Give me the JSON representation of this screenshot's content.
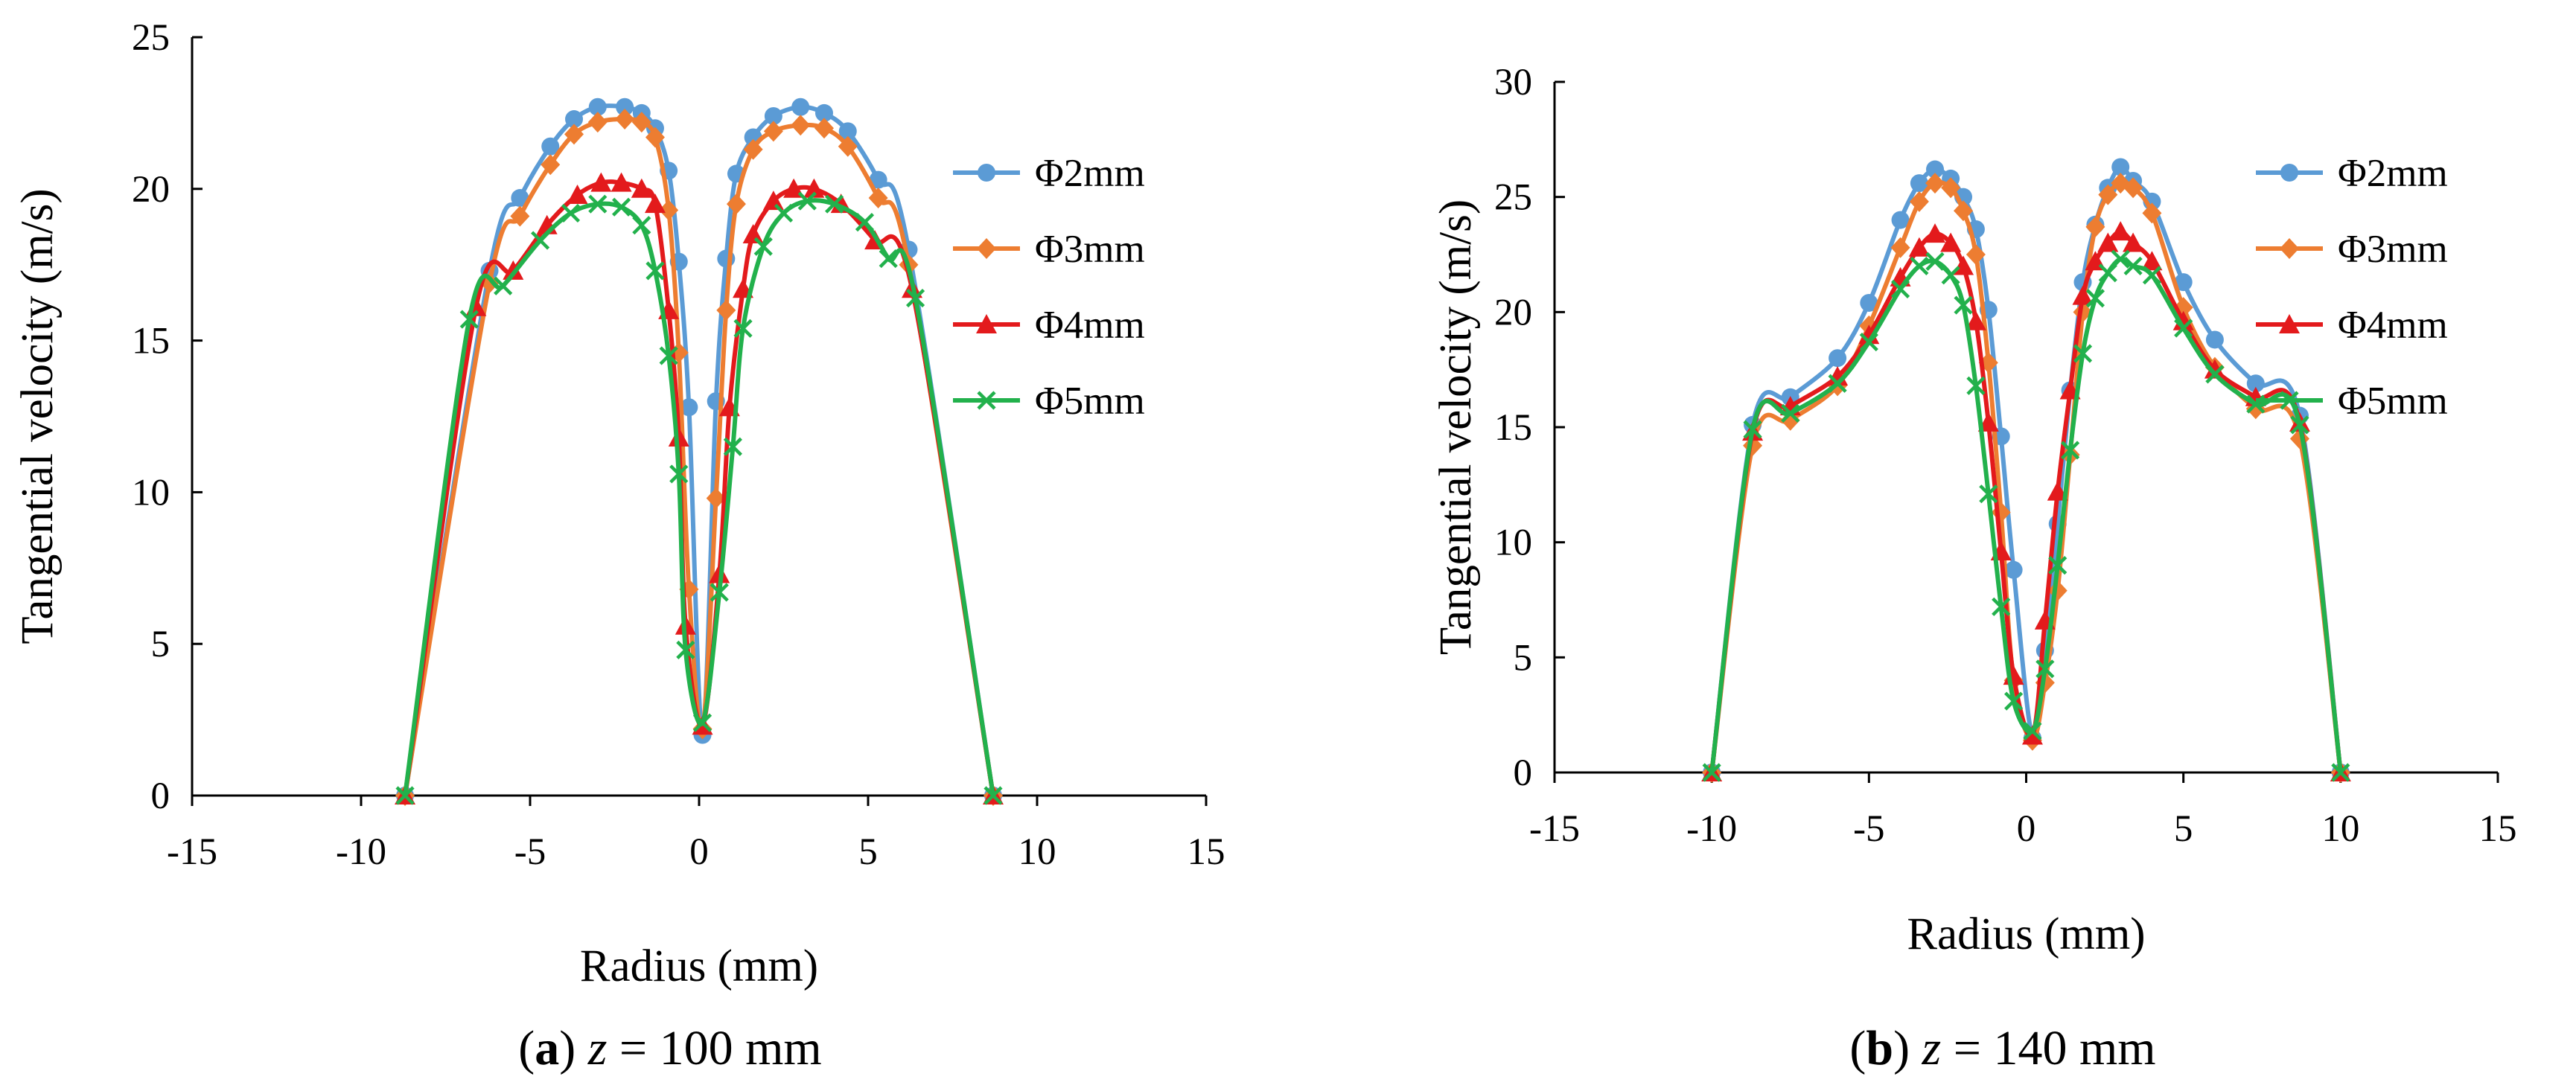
{
  "chart_data": [
    {
      "type": "line",
      "panel_id": "a",
      "caption": {
        "label": "a",
        "var": "z",
        "rest": " = 100 mm"
      },
      "xlabel": "Radius (mm)",
      "ylabel": "Tangential velocity (m/s)",
      "xlim": [
        -15,
        15
      ],
      "ylim": [
        0,
        25
      ],
      "xticks": [
        -15,
        -10,
        -5,
        0,
        5,
        10,
        15
      ],
      "yticks": [
        0,
        5,
        10,
        15,
        20,
        25
      ],
      "legend_position": "right",
      "series": [
        {
          "name": "Φ2mm",
          "marker": "circle",
          "x": [
            -8.7,
            -6.2,
            -5.3,
            -4.4,
            -3.7,
            -3.0,
            -2.2,
            -1.7,
            -1.3,
            -0.9,
            -0.6,
            -0.3,
            0.1,
            0.5,
            0.8,
            1.1,
            1.6,
            2.2,
            3.0,
            3.7,
            4.4,
            5.3,
            6.2,
            8.7
          ],
          "y": [
            0,
            17.3,
            19.7,
            21.4,
            22.3,
            22.7,
            22.7,
            22.5,
            22.0,
            20.6,
            17.6,
            12.8,
            2.0,
            13.0,
            17.7,
            20.5,
            21.7,
            22.4,
            22.7,
            22.5,
            21.9,
            20.3,
            18.0,
            0
          ],
          "color": "#5b9bd5"
        },
        {
          "name": "Φ3mm",
          "marker": "diamond",
          "x": [
            -8.7,
            -6.2,
            -5.3,
            -4.4,
            -3.7,
            -3.0,
            -2.2,
            -1.7,
            -1.3,
            -0.9,
            -0.6,
            -0.3,
            0.1,
            0.5,
            0.8,
            1.1,
            1.6,
            2.2,
            3.0,
            3.7,
            4.4,
            5.3,
            6.2,
            8.7
          ],
          "y": [
            0,
            16.9,
            19.1,
            20.8,
            21.8,
            22.2,
            22.3,
            22.2,
            21.7,
            19.3,
            14.6,
            6.8,
            2.2,
            9.8,
            16.0,
            19.5,
            21.3,
            21.9,
            22.1,
            22.0,
            21.4,
            19.7,
            17.5,
            0
          ],
          "color": "#ed7d31"
        },
        {
          "name": "Φ4mm",
          "marker": "triangle",
          "x": [
            -8.7,
            -6.6,
            -5.5,
            -4.5,
            -3.6,
            -2.9,
            -2.3,
            -1.7,
            -1.3,
            -0.9,
            -0.6,
            -0.4,
            0.1,
            0.6,
            0.9,
            1.3,
            1.6,
            2.2,
            2.8,
            3.4,
            4.2,
            5.2,
            6.3,
            8.7
          ],
          "y": [
            0,
            16.1,
            17.3,
            18.8,
            19.8,
            20.2,
            20.2,
            20.0,
            19.5,
            16.0,
            11.8,
            5.6,
            2.3,
            7.3,
            12.8,
            16.7,
            18.5,
            19.6,
            20.0,
            20.0,
            19.5,
            18.3,
            16.7,
            0
          ],
          "color": "#e31a1c"
        },
        {
          "name": "Φ5mm",
          "marker": "x",
          "x": [
            -8.7,
            -6.8,
            -5.8,
            -4.7,
            -3.8,
            -3.0,
            -2.3,
            -1.7,
            -1.3,
            -0.9,
            -0.6,
            -0.4,
            0.1,
            0.6,
            1.0,
            1.3,
            1.9,
            2.5,
            3.2,
            4.0,
            4.9,
            5.6,
            6.4,
            8.7
          ],
          "y": [
            0,
            15.7,
            16.8,
            18.3,
            19.2,
            19.5,
            19.4,
            18.8,
            17.3,
            14.5,
            10.6,
            4.8,
            2.4,
            6.7,
            11.5,
            15.4,
            18.1,
            19.2,
            19.6,
            19.5,
            18.9,
            17.7,
            16.4,
            0
          ],
          "color": "#22b14c"
        }
      ]
    },
    {
      "type": "line",
      "panel_id": "b",
      "caption": {
        "label": "b",
        "var": "z",
        "rest": " = 140 mm"
      },
      "xlabel": "Radius (mm)",
      "ylabel": "Tangential velocity (m/s)",
      "xlim": [
        -15,
        15
      ],
      "ylim": [
        0,
        30
      ],
      "xticks": [
        -15,
        -10,
        -5,
        0,
        5,
        10,
        15
      ],
      "yticks": [
        0,
        5,
        10,
        15,
        20,
        25,
        30
      ],
      "legend_position": "right",
      "series": [
        {
          "name": "Φ2mm",
          "marker": "circle",
          "x": [
            -10.0,
            -8.7,
            -7.5,
            -6.0,
            -5.0,
            -4.0,
            -3.4,
            -2.9,
            -2.4,
            -2.0,
            -1.6,
            -1.2,
            -0.8,
            -0.4,
            0.2,
            0.6,
            1.0,
            1.4,
            1.8,
            2.2,
            2.6,
            3.0,
            3.4,
            4.0,
            5.0,
            6.0,
            7.3,
            8.7,
            10.0
          ],
          "y": [
            0,
            15.1,
            16.3,
            18.0,
            20.4,
            24.0,
            25.6,
            26.2,
            25.8,
            25.0,
            23.6,
            20.1,
            14.6,
            8.8,
            1.5,
            5.3,
            10.8,
            16.6,
            21.3,
            23.8,
            25.4,
            26.3,
            25.7,
            24.8,
            21.3,
            18.8,
            16.9,
            15.5,
            0
          ],
          "color": "#5b9bd5"
        },
        {
          "name": "Φ3mm",
          "marker": "diamond",
          "x": [
            -10.0,
            -8.7,
            -7.5,
            -6.0,
            -5.0,
            -4.0,
            -3.4,
            -2.9,
            -2.4,
            -2.0,
            -1.6,
            -1.2,
            -0.8,
            -0.4,
            0.2,
            0.6,
            1.0,
            1.4,
            1.8,
            2.2,
            2.6,
            3.0,
            3.4,
            4.0,
            5.0,
            6.0,
            7.3,
            8.7,
            10.0
          ],
          "y": [
            0,
            14.2,
            15.3,
            16.8,
            19.4,
            22.8,
            24.8,
            25.6,
            25.4,
            24.4,
            22.5,
            17.8,
            11.3,
            4.0,
            1.4,
            3.9,
            7.9,
            13.8,
            20.0,
            23.7,
            25.1,
            25.6,
            25.4,
            24.3,
            20.2,
            17.6,
            15.8,
            14.5,
            0
          ],
          "color": "#ed7d31"
        },
        {
          "name": "Φ4mm",
          "marker": "triangle",
          "x": [
            -10.0,
            -8.7,
            -7.5,
            -6.0,
            -5.0,
            -4.0,
            -3.4,
            -2.9,
            -2.4,
            -2.0,
            -1.6,
            -1.2,
            -0.8,
            -0.4,
            0.2,
            0.6,
            1.0,
            1.4,
            1.8,
            2.2,
            2.6,
            3.0,
            3.4,
            4.0,
            5.0,
            6.0,
            7.3,
            8.7,
            10.0
          ],
          "y": [
            0,
            14.8,
            15.9,
            17.2,
            19.0,
            21.5,
            22.8,
            23.4,
            23.0,
            22.0,
            19.6,
            15.2,
            9.6,
            4.2,
            1.6,
            6.6,
            12.2,
            16.6,
            20.7,
            22.2,
            23.0,
            23.5,
            23.0,
            22.2,
            19.6,
            17.5,
            16.3,
            15.2,
            0
          ],
          "color": "#e31a1c"
        },
        {
          "name": "Φ5mm",
          "marker": "x",
          "x": [
            -10.0,
            -8.7,
            -7.5,
            -6.0,
            -5.0,
            -4.0,
            -3.4,
            -2.9,
            -2.4,
            -2.0,
            -1.6,
            -1.2,
            -0.8,
            -0.4,
            0.2,
            0.6,
            1.0,
            1.4,
            1.8,
            2.2,
            2.6,
            3.0,
            3.4,
            4.0,
            5.0,
            6.0,
            7.3,
            8.7,
            10.0
          ],
          "y": [
            0,
            14.9,
            15.6,
            16.9,
            18.7,
            21.0,
            22.0,
            22.2,
            21.6,
            20.3,
            16.8,
            12.1,
            7.2,
            3.1,
            1.8,
            4.5,
            9.0,
            14.0,
            18.2,
            20.6,
            21.7,
            22.3,
            22.0,
            21.6,
            19.3,
            17.3,
            16.0,
            15.1,
            0
          ],
          "color": "#22b14c"
        }
      ]
    }
  ]
}
